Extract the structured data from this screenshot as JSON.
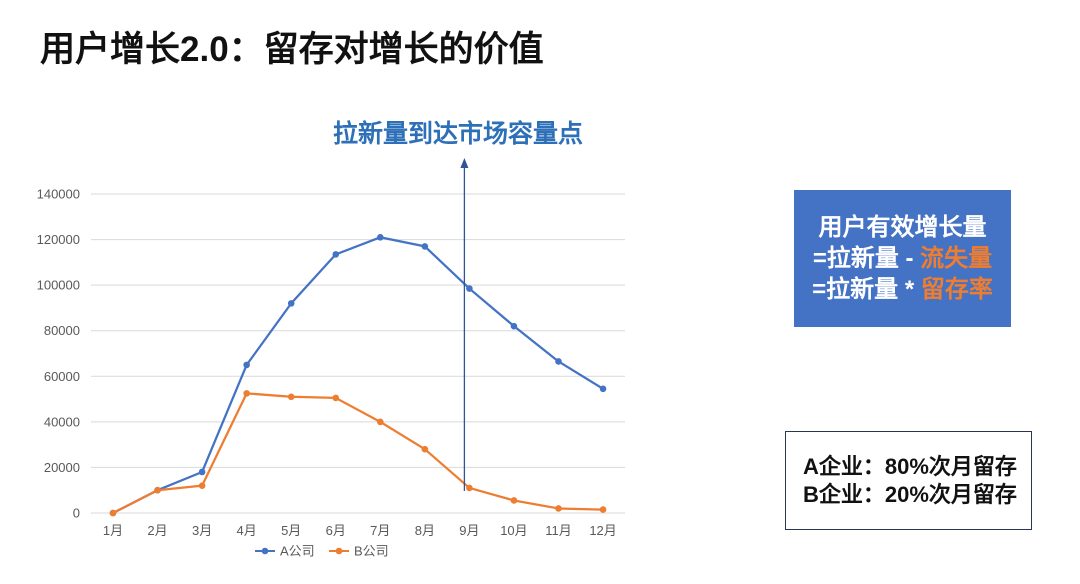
{
  "slide": {
    "title": "用户增长2.0：留存对增长的价值"
  },
  "chart_data": {
    "type": "line",
    "categories": [
      "1月",
      "2月",
      "3月",
      "4月",
      "5月",
      "6月",
      "7月",
      "8月",
      "9月",
      "10月",
      "11月",
      "12月"
    ],
    "series": [
      {
        "name": "A公司",
        "color": "#4472C4",
        "values": [
          0,
          10000,
          18000,
          65000,
          92000,
          113500,
          121000,
          117000,
          98500,
          82000,
          66500,
          54500
        ]
      },
      {
        "name": "B公司",
        "color": "#ED7D31",
        "values": [
          0,
          10000,
          12000,
          52500,
          51000,
          50500,
          40000,
          28000,
          11000,
          5500,
          2000,
          1500
        ]
      }
    ],
    "ylim": [
      0,
      140000
    ],
    "yticks": [
      0,
      20000,
      40000,
      60000,
      80000,
      100000,
      120000,
      140000
    ],
    "grid": true,
    "markers": true,
    "legend": "bottom",
    "annotations": [
      {
        "text": "拉新量到达市场容量点",
        "x": "9月",
        "color": "#2E70B8"
      }
    ]
  },
  "formula_box": {
    "line1": "用户有效增长量",
    "line2": {
      "text": "=拉新量 - ",
      "highlight": "流失量"
    },
    "line3": {
      "text": "=拉新量 * ",
      "highlight": "留存率"
    },
    "fill": "#4472C4",
    "highlight_color": "#ED7D31"
  },
  "retention_box": {
    "lines": [
      "A企业：80%次月留存",
      "B企业：20%次月留存"
    ]
  }
}
